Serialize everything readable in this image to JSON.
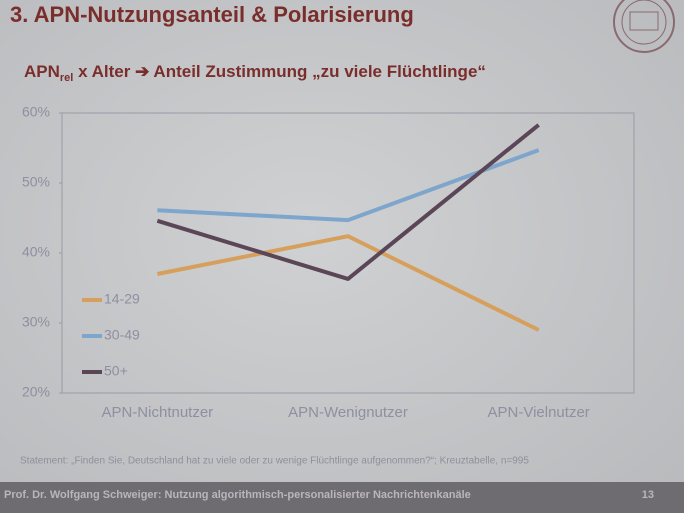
{
  "chart_data": {
    "type": "line",
    "title": "3. APN-Nutzungsanteil & Polarisierung",
    "subtitle": [
      "APN",
      "rel",
      " x Alter ➔ Anteil Zustimmung „zu viele Flüchtlinge“"
    ],
    "categories": [
      "APN-Nichtnutzer",
      "APN-Wenignutzer",
      "APN-Vielnutzer"
    ],
    "series": [
      {
        "name": "14-29",
        "color": "#d6a05c",
        "values": [
          37,
          42.4,
          29
        ]
      },
      {
        "name": "30-49",
        "color": "#7ea5cc",
        "values": [
          46.1,
          44.7,
          54.7
        ]
      },
      {
        "name": "50+",
        "color": "#5b4657",
        "values": [
          44.6,
          36.3,
          58.3
        ]
      }
    ],
    "ylim": [
      20,
      60
    ],
    "yticks": [
      {
        "value": 20,
        "label": "20%"
      },
      {
        "value": 30,
        "label": "30%"
      },
      {
        "value": 40,
        "label": "40%"
      },
      {
        "value": 50,
        "label": "50%"
      },
      {
        "value": 60,
        "label": "60%"
      }
    ],
    "grid": false,
    "legend": "lower left",
    "note": "Statement: „Finden Sie, Deutschland hat zu viele oder zu wenige Flüchtlinge aufgenommen?“; Kreuztabelle, n=995"
  },
  "footer": {
    "text": "Prof. Dr. Wolfgang Schweiger: Nutzung algorithmisch-personalisierter Nachrichtenkanäle",
    "page": "13"
  }
}
